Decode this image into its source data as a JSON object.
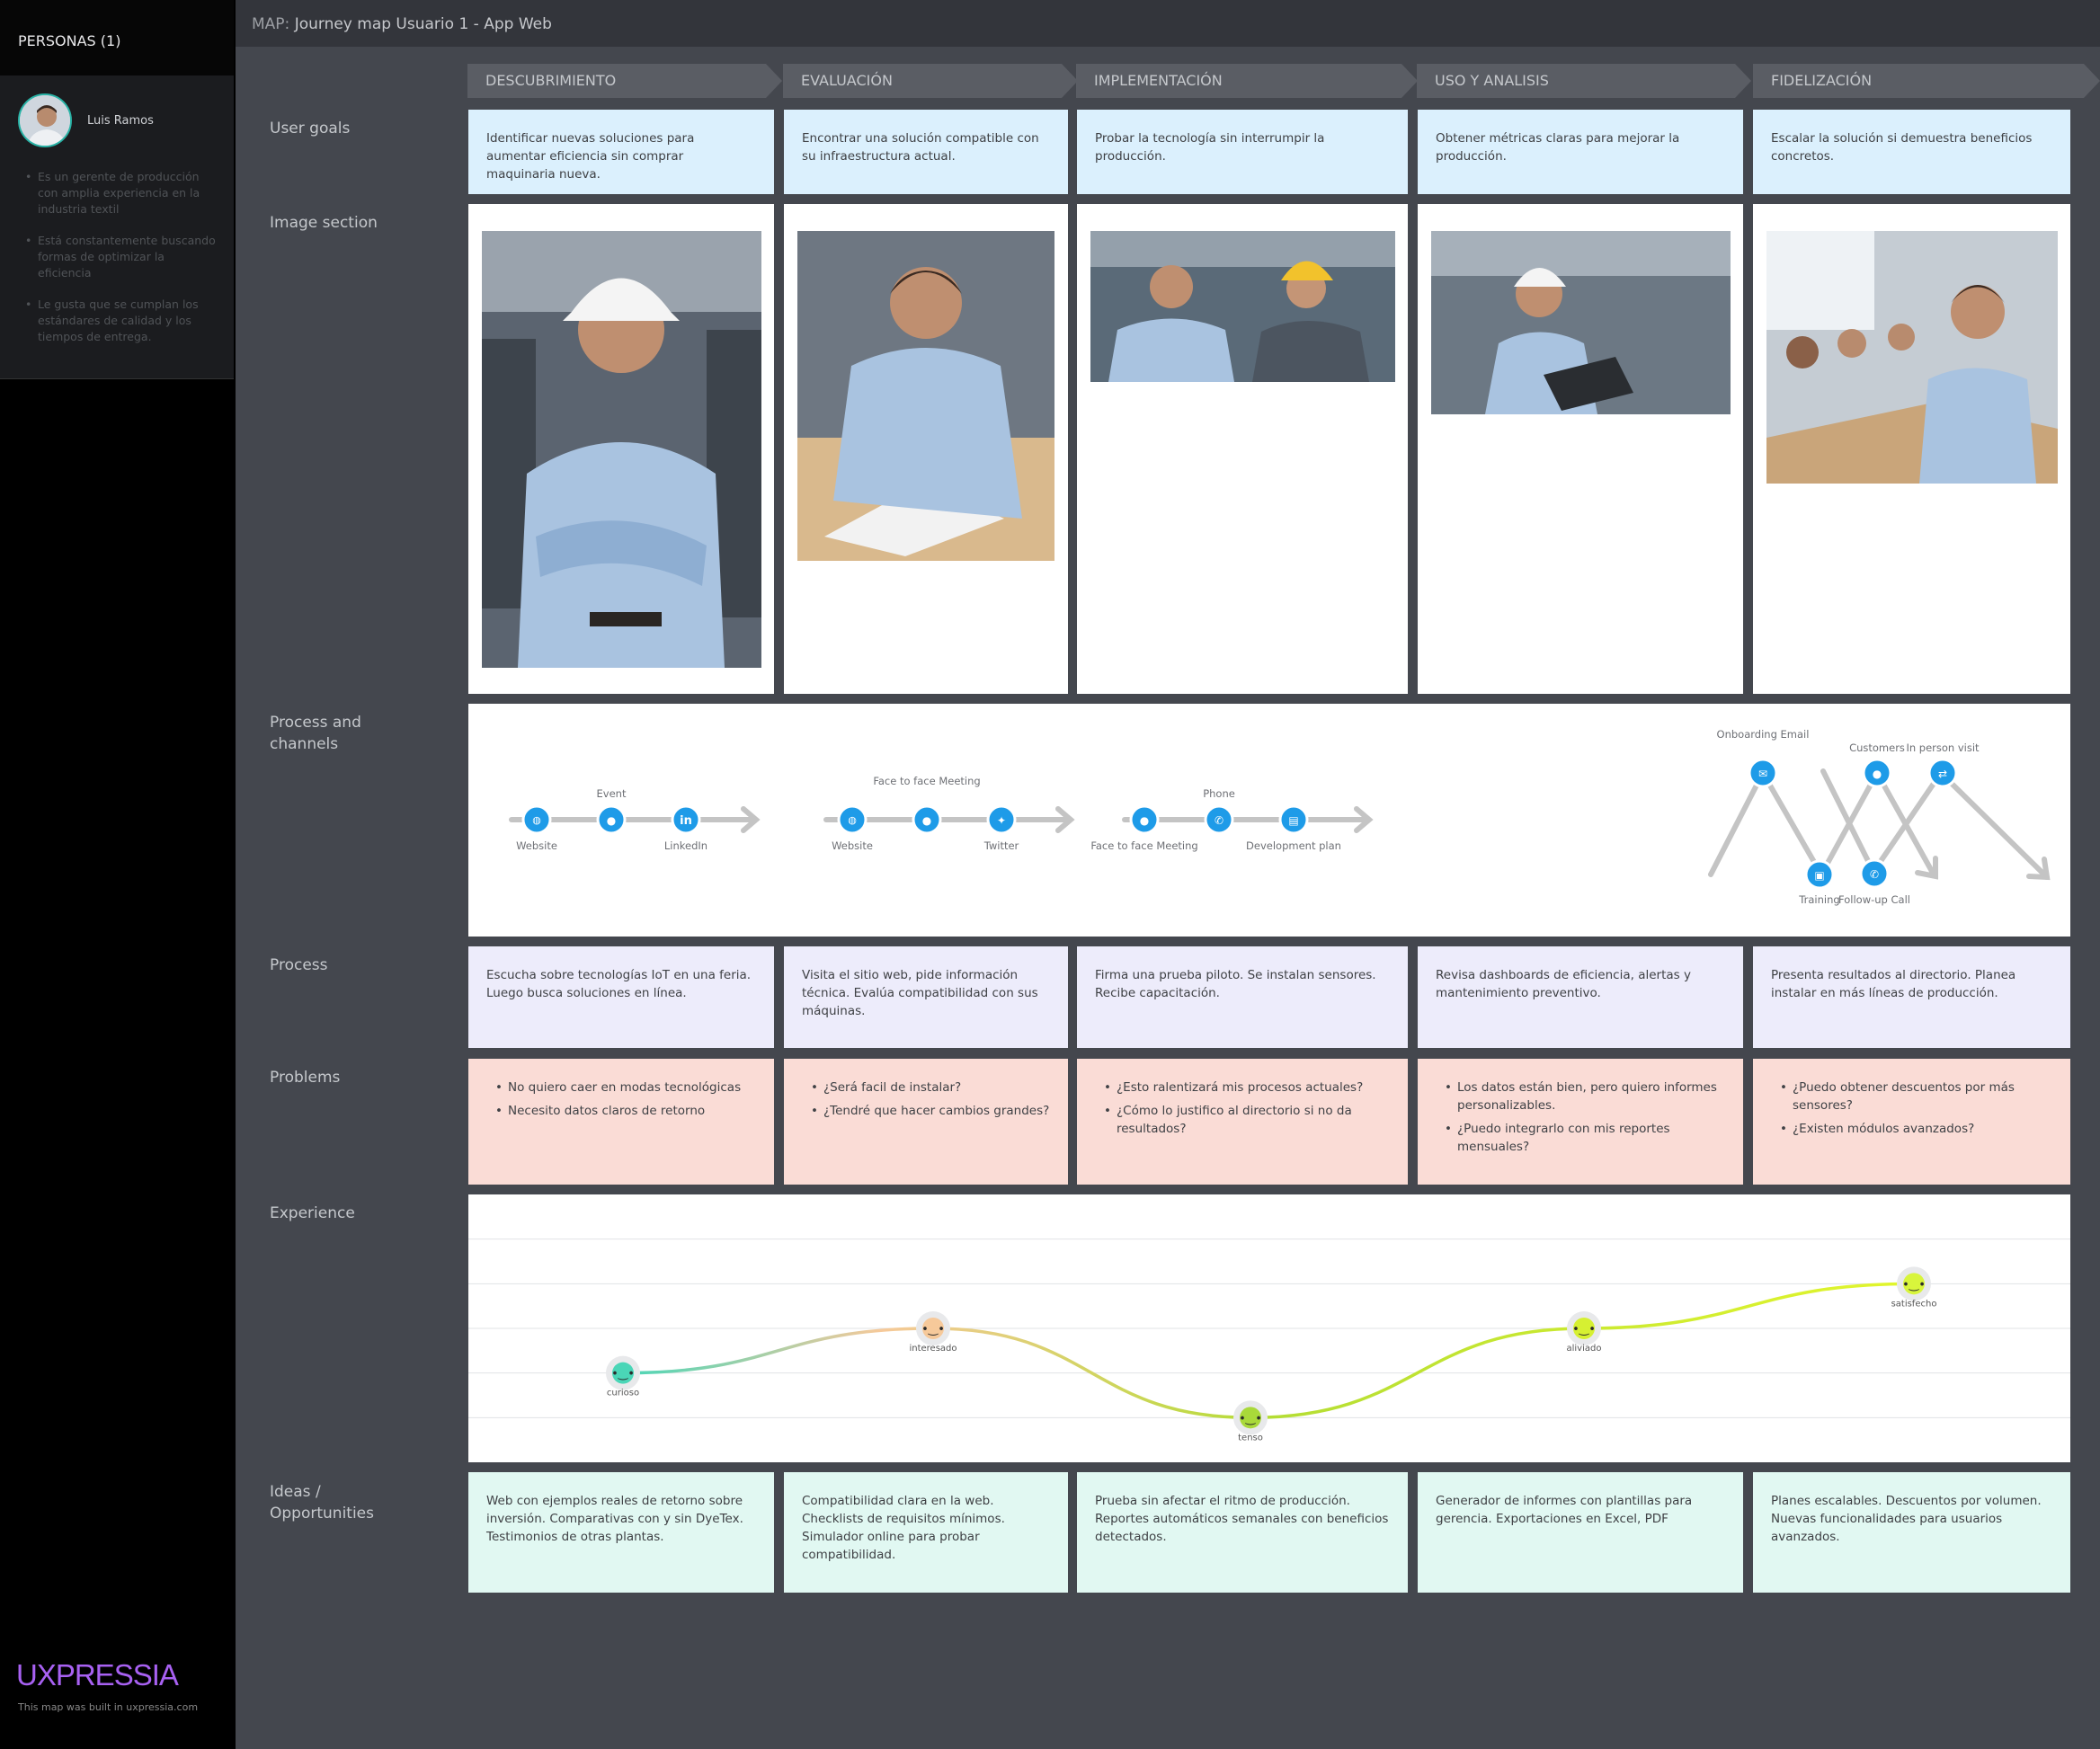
{
  "sidebar": {
    "header": "PERSONAS (1)",
    "persona": {
      "name": "Luis Ramos",
      "traits": [
        "Es un gerente de producción con amplia experiencia en la industria textil",
        "Está constantemente buscando formas de optimizar la eficiencia",
        "Le gusta que se cumplan los estándares de calidad y los tiempos de entrega."
      ]
    },
    "brand": "UXPRESSIA",
    "built": "This map was built in uxpressia.com"
  },
  "map": {
    "prefix": "MAP:",
    "title": "Journey map Usuario 1 - App Web"
  },
  "stages": [
    "DESCUBRIMIENTO",
    "EVALUACIÓN",
    "IMPLEMENTACIÓN",
    "USO Y ANALISIS",
    "FIDELIZACIÓN"
  ],
  "row_labels": {
    "goals": "User goals",
    "images": "Image section",
    "channels": "Process and channels",
    "process": "Process",
    "problems": "Problems",
    "experience": "Experience",
    "ideas": "Ideas / Opportunities"
  },
  "goals": [
    "Identificar nuevas soluciones para aumentar eficiencia sin comprar maquinaria nueva.",
    "Encontrar una solución compatible con su infraestructura actual.",
    "Probar la tecnología sin interrumpir la producción.",
    "Obtener métricas claras para mejorar la producción.",
    "Escalar la solución si demuestra beneficios concretos."
  ],
  "channels": {
    "descubrimiento": [
      "Website",
      "Event",
      "LinkedIn"
    ],
    "evaluacion": [
      "Website",
      "Face to face Meeting",
      "Twitter"
    ],
    "implementacion": [
      "Face to face Meeting",
      "Phone",
      "Development plan"
    ],
    "uso": [
      "Onboarding Email",
      "Training",
      "Customers"
    ],
    "fidelizacion": [
      "Follow-up Call",
      "In person visit"
    ]
  },
  "process": [
    "Escucha sobre tecnologías IoT en una feria. Luego busca soluciones en línea.",
    "Visita el sitio web, pide información técnica. Evalúa compatibilidad con sus máquinas.",
    "Firma una prueba piloto. Se instalan sensores. Recibe capacitación.",
    "Revisa dashboards de eficiencia, alertas y mantenimiento preventivo.",
    "Presenta resultados al directorio. Planea instalar en más líneas de producción."
  ],
  "problems": [
    [
      "No quiero caer en modas tecnológicas",
      "Necesito datos claros de retorno"
    ],
    [
      "¿Será facil de instalar?",
      "¿Tendré que hacer cambios grandes?"
    ],
    [
      "¿Esto ralentizará mis procesos actuales?",
      "¿Cómo lo justifico al directorio si no da resultados?"
    ],
    [
      "Los datos están bien, pero quiero informes personalizables.",
      "¿Puedo integrarlo con mis reportes mensuales?"
    ],
    [
      "¿Puedo obtener descuentos por más sensores?",
      "¿Existen módulos avanzados?"
    ]
  ],
  "experience": {
    "points": [
      {
        "label": "curioso",
        "level": 2,
        "color": "#4ad6b7"
      },
      {
        "label": "interesado",
        "level": 3,
        "color": "#f6c99a"
      },
      {
        "label": "tenso",
        "level": 1,
        "color": "#a9d93a"
      },
      {
        "label": "aliviado",
        "level": 3,
        "color": "#d6f032"
      },
      {
        "label": "satisfecho",
        "level": 4,
        "color": "#d8f53c"
      }
    ],
    "scale_max": 5
  },
  "ideas": [
    "Web con ejemplos reales de retorno sobre inversión. Comparativas con y sin DyeTex. Testimonios de otras plantas.",
    "Compatibilidad clara en la web. Checklists de requisitos mínimos. Simulador online para probar compatibilidad.",
    "Prueba sin afectar el ritmo de producción. Reportes automáticos semanales con beneficios detectados.",
    "Generador de informes con plantillas para gerencia. Exportaciones en Excel, PDF",
    "Planes escalables. Descuentos por volumen. Nuevas funcionalidades para usuarios avanzados."
  ],
  "colors": {
    "channel_icon": "#1e9be8",
    "arrow": "#c4c4c4"
  }
}
